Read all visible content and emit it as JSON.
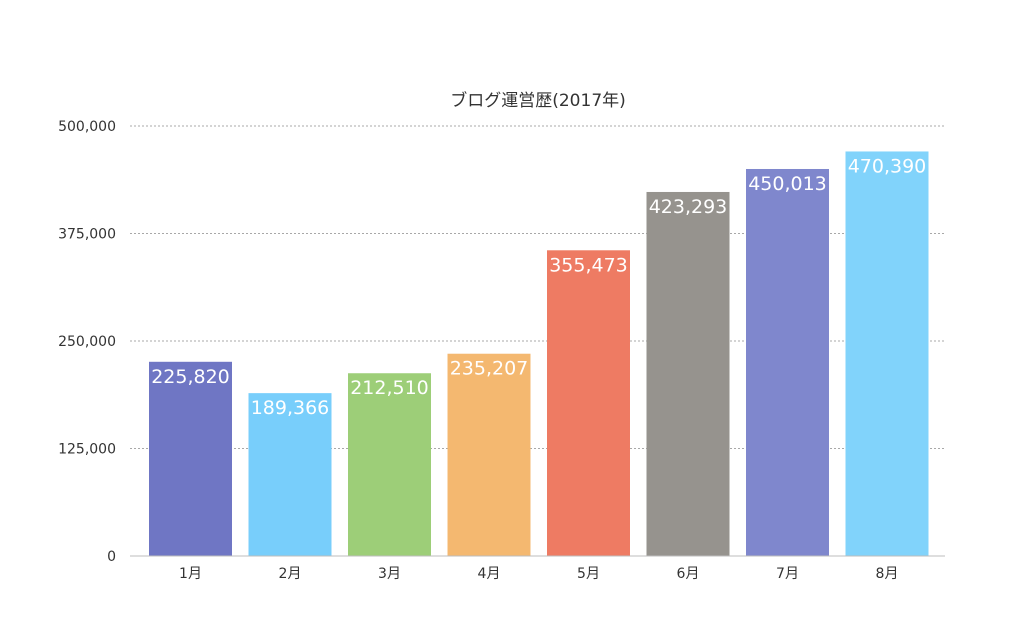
{
  "chart_data": {
    "type": "bar",
    "title": "ブログ運営歴(2017年)",
    "xlabel": "",
    "ylabel": "",
    "categories": [
      "1月",
      "2月",
      "3月",
      "4月",
      "5月",
      "6月",
      "7月",
      "8月"
    ],
    "values": [
      225820,
      189366,
      212510,
      235207,
      355473,
      423293,
      450013,
      470390
    ],
    "value_labels": [
      "225,820",
      "189,366",
      "212,510",
      "235,207",
      "355,473",
      "423,293",
      "450,013",
      "470,390"
    ],
    "colors": [
      "#6f76c4",
      "#78cefb",
      "#9dce78",
      "#f4b870",
      "#ee7b63",
      "#96938e",
      "#7f87cd",
      "#81d3fb"
    ],
    "ylim": [
      0,
      500000
    ],
    "yticks": [
      0,
      125000,
      250000,
      375000,
      500000
    ],
    "ytick_labels": [
      "0",
      "125,000",
      "250,000",
      "375,000",
      "500,000"
    ],
    "grid": true,
    "legend": "none"
  }
}
